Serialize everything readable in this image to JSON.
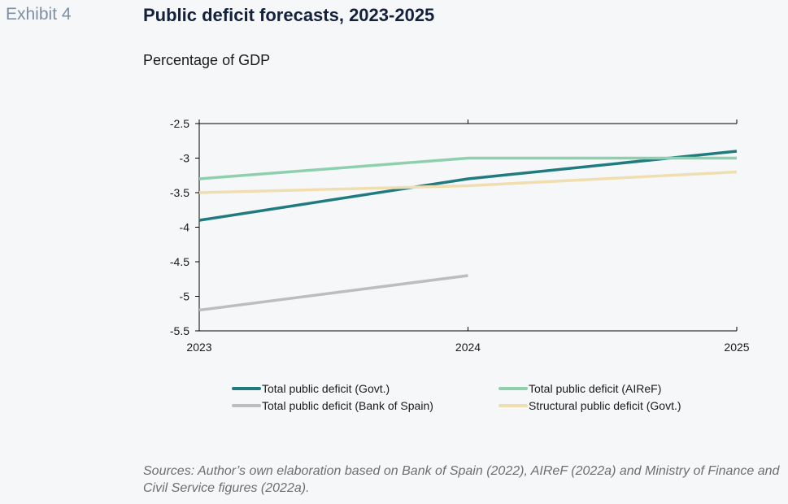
{
  "header": {
    "exhibit_label": "Exhibit 4",
    "title": "Public deficit forecasts, 2023-2025",
    "subtitle": "Percentage of GDP"
  },
  "chart_data": {
    "type": "line",
    "title": "Public deficit forecasts, 2023-2025",
    "ylabel": "Percentage of GDP",
    "x": [
      "2023",
      "2024",
      "2025"
    ],
    "ylim": [
      -5.5,
      -2.5
    ],
    "yticks": [
      -2.5,
      -3,
      -3.5,
      -4,
      -4.5,
      -5,
      -5.5
    ],
    "ytick_labels": [
      "-2.5",
      "-3",
      "-3.5",
      "-4",
      "-4.5",
      "-5",
      "-5.5"
    ],
    "grid": false,
    "legend_position": "bottom",
    "series": [
      {
        "name": "Total public deficit (Govt.)",
        "color": "#1f7b7f",
        "values": [
          -3.9,
          -3.3,
          -2.9
        ]
      },
      {
        "name": "Total public deficit (AIReF)",
        "color": "#8ed0ae",
        "values": [
          -3.3,
          -3.0,
          -3.0
        ]
      },
      {
        "name": "Total public deficit (Bank of Spain)",
        "color": "#bdbdbd",
        "values": [
          -5.2,
          -4.7,
          null
        ]
      },
      {
        "name": "Structural public deficit (Govt.)",
        "color": "#f0deb0",
        "values": [
          -3.5,
          -3.4,
          -3.2
        ]
      }
    ]
  },
  "source_note": "Sources: Author’s own elaboration based on Bank of Spain (2022), AIReF (2022a) and Ministry of Finance and Civil Service figures (2022a)."
}
